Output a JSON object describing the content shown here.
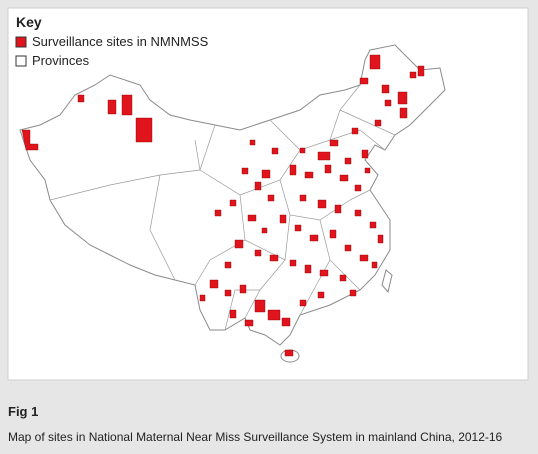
{
  "key": {
    "title": "Key",
    "items": [
      "Surveillance sites in NMNMSS",
      "Provinces"
    ]
  },
  "figure": {
    "label": "Fig 1",
    "caption": "Map of sites in National Maternal Near Miss Surveillance System in mainland China, 2012-16"
  }
}
